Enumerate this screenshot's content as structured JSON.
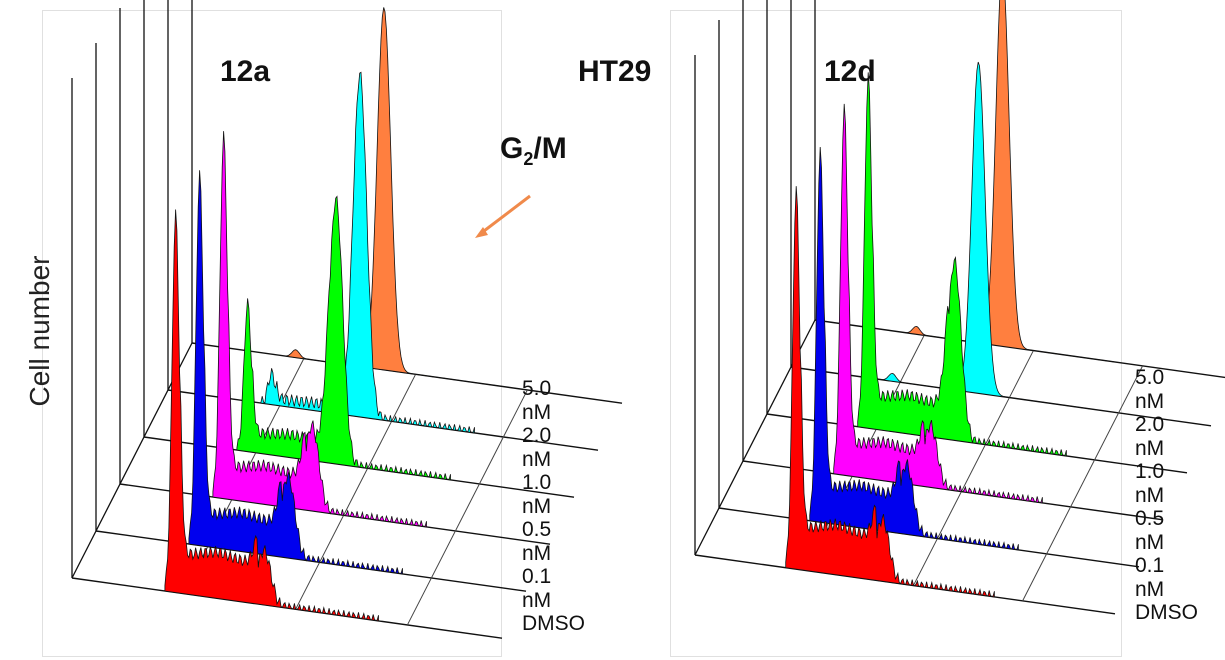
{
  "figure": {
    "cell_line": "HT29",
    "ylabel": "Cell number",
    "annotation": {
      "main": "G",
      "sub": "2",
      "rest": "/M"
    },
    "colors": {
      "DMSO": "#ff0000",
      "0.1 nM": "#0000ee",
      "0.5 nM": "#ff00ff",
      "1.0 nM": "#00ff00",
      "2.0 nM": "#00ffff",
      "5.0 nM": "#ff7f3f",
      "arrow": "#f08a4b"
    }
  },
  "chart_data": [
    {
      "type": "area",
      "title": "12a",
      "ylabel": "Cell number",
      "levels": [
        "5.0 nM",
        "2.0 nM",
        "1.0 nM",
        "0.5 nM",
        "0.1 nM",
        "DMSO"
      ],
      "series": [
        {
          "name": "DMSO",
          "g1_peak": 0.97,
          "g2m_peak": 0.14,
          "s_level": 0.12
        },
        {
          "name": "0.1 nM",
          "g1_peak": 0.95,
          "g2m_peak": 0.21,
          "s_level": 0.1
        },
        {
          "name": "0.5 nM",
          "g1_peak": 0.93,
          "g2m_peak": 0.22,
          "s_level": 0.1
        },
        {
          "name": "1.0 nM",
          "g1_peak": 0.38,
          "g2m_peak": 0.68,
          "s_level": 0.06
        },
        {
          "name": "2.0 nM",
          "g1_peak": 0.08,
          "g2m_peak": 0.88,
          "s_level": 0.02
        },
        {
          "name": "5.0 nM",
          "g1_peak": 0.02,
          "g2m_peak": 0.93,
          "s_level": 0.0
        }
      ]
    },
    {
      "type": "area",
      "title": "12d",
      "ylabel": "Cell number",
      "levels": [
        "5.0 nM",
        "2.0 nM",
        "1.0 nM",
        "0.5 nM",
        "0.1 nM",
        "DMSO"
      ],
      "series": [
        {
          "name": "DMSO",
          "g1_peak": 0.97,
          "g2m_peak": 0.16,
          "s_level": 0.13
        },
        {
          "name": "0.1 nM",
          "g1_peak": 0.95,
          "g2m_peak": 0.18,
          "s_level": 0.11
        },
        {
          "name": "0.5 nM",
          "g1_peak": 0.94,
          "g2m_peak": 0.16,
          "s_level": 0.1
        },
        {
          "name": "1.0 nM",
          "g1_peak": 0.9,
          "g2m_peak": 0.46,
          "s_level": 0.1
        },
        {
          "name": "2.0 nM",
          "g1_peak": 0.02,
          "g2m_peak": 0.85,
          "s_level": 0.0
        },
        {
          "name": "5.0 nM",
          "g1_peak": 0.02,
          "g2m_peak": 0.97,
          "s_level": 0.0
        }
      ]
    }
  ]
}
